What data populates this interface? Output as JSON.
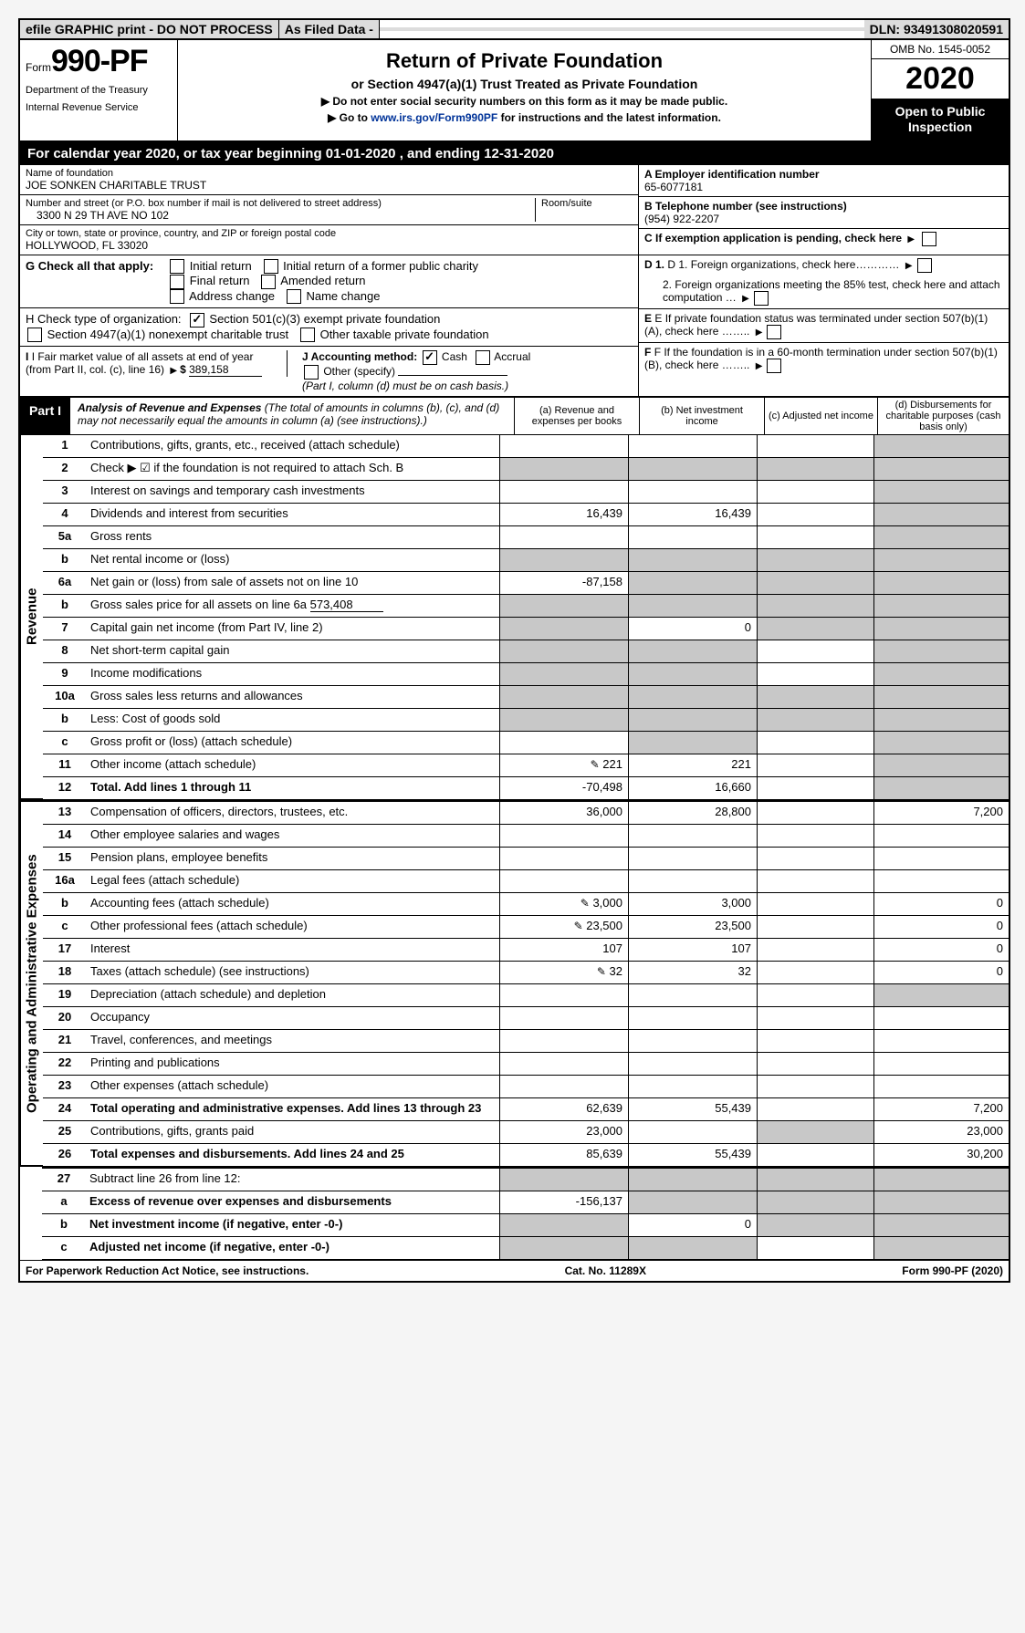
{
  "topbar": {
    "efile": "efile GRAPHIC print - DO NOT PROCESS",
    "asfiled": "As Filed Data -",
    "dln": "DLN: 93491308020591"
  },
  "header": {
    "form_word": "Form",
    "form_no": "990-PF",
    "dept1": "Department of the Treasury",
    "dept2": "Internal Revenue Service",
    "title": "Return of Private Foundation",
    "subtitle": "or Section 4947(a)(1) Trust Treated as Private Foundation",
    "note1": "▶ Do not enter social security numbers on this form as it may be made public.",
    "note2_pre": "▶ Go to ",
    "note2_link": "www.irs.gov/Form990PF",
    "note2_post": " for instructions and the latest information.",
    "omb": "OMB No. 1545-0052",
    "year": "2020",
    "open": "Open to Public Inspection"
  },
  "calendar": "For calendar year 2020, or tax year beginning 01-01-2020            , and ending 12-31-2020",
  "info": {
    "name_label": "Name of foundation",
    "name": "JOE SONKEN CHARITABLE TRUST",
    "addr_label": "Number and street (or P.O. box number if mail is not delivered to street address)",
    "addr": "3300 N 29 TH AVE NO 102",
    "room_label": "Room/suite",
    "city_label": "City or town, state or province, country, and ZIP or foreign postal code",
    "city": "HOLLYWOOD, FL  33020",
    "ein_label": "A Employer identification number",
    "ein": "65-6077181",
    "tel_label": "B Telephone number (see instructions)",
    "tel": "(954) 922-2207",
    "c_label": "C If exemption application is pending, check here"
  },
  "g": {
    "label": "G Check all that apply:",
    "o1": "Initial return",
    "o2": "Initial return of a former public charity",
    "o3": "Final return",
    "o4": "Amended return",
    "o5": "Address change",
    "o6": "Name change"
  },
  "h": {
    "label": "H Check type of organization:",
    "o1": "Section 501(c)(3) exempt private foundation",
    "o2": "Section 4947(a)(1) nonexempt charitable trust",
    "o3": "Other taxable private foundation"
  },
  "i": {
    "label": "I Fair market value of all assets at end of year (from Part II, col. (c), line 16)",
    "val": "389,158"
  },
  "j": {
    "label": "J Accounting method:",
    "o1": "Cash",
    "o2": "Accrual",
    "o3": "Other (specify)",
    "note": "(Part I, column (d) must be on cash basis.)"
  },
  "right": {
    "d1": "D 1. Foreign organizations, check here…………",
    "d2": "2. Foreign organizations meeting the 85% test, check here and attach computation …",
    "e": "E If private foundation status was terminated under section 507(b)(1)(A), check here ……..",
    "f": "F If the foundation is in a 60-month termination under section 507(b)(1)(B), check here …….."
  },
  "part1": {
    "tag": "Part I",
    "title": "Analysis of Revenue and Expenses",
    "note": " (The total of amounts in columns (b), (c), and (d) may not necessarily equal the amounts in column (a) (see instructions).)",
    "col_a": "(a) Revenue and expenses per books",
    "col_b": "(b) Net investment income",
    "col_c": "(c) Adjusted net income",
    "col_d": "(d) Disbursements for charitable purposes (cash basis only)"
  },
  "vlabels": {
    "rev": "Revenue",
    "exp": "Operating and Administrative Expenses"
  },
  "rows": {
    "r1": {
      "n": "1",
      "l": "Contributions, gifts, grants, etc., received (attach schedule)"
    },
    "r2": {
      "n": "2",
      "l": "Check ▶ ☑ if the foundation is not required to attach Sch. B"
    },
    "r3": {
      "n": "3",
      "l": "Interest on savings and temporary cash investments"
    },
    "r4": {
      "n": "4",
      "l": "Dividends and interest from securities",
      "a": "16,439",
      "b": "16,439"
    },
    "r5a": {
      "n": "5a",
      "l": "Gross rents"
    },
    "r5b": {
      "n": "b",
      "l": "Net rental income or (loss)"
    },
    "r6a": {
      "n": "6a",
      "l": "Net gain or (loss) from sale of assets not on line 10",
      "a": "-87,158"
    },
    "r6b": {
      "n": "b",
      "l": "Gross sales price for all assets on line 6a",
      "inline": "573,408"
    },
    "r7": {
      "n": "7",
      "l": "Capital gain net income (from Part IV, line 2)",
      "b": "0"
    },
    "r8": {
      "n": "8",
      "l": "Net short-term capital gain"
    },
    "r9": {
      "n": "9",
      "l": "Income modifications"
    },
    "r10a": {
      "n": "10a",
      "l": "Gross sales less returns and allowances"
    },
    "r10b": {
      "n": "b",
      "l": "Less: Cost of goods sold"
    },
    "r10c": {
      "n": "c",
      "l": "Gross profit or (loss) (attach schedule)"
    },
    "r11": {
      "n": "11",
      "l": "Other income (attach schedule)",
      "a": "221",
      "b": "221",
      "icon": true
    },
    "r12": {
      "n": "12",
      "l": "Total. Add lines 1 through 11",
      "a": "-70,498",
      "b": "16,660",
      "bold": true
    },
    "r13": {
      "n": "13",
      "l": "Compensation of officers, directors, trustees, etc.",
      "a": "36,000",
      "b": "28,800",
      "d": "7,200"
    },
    "r14": {
      "n": "14",
      "l": "Other employee salaries and wages"
    },
    "r15": {
      "n": "15",
      "l": "Pension plans, employee benefits"
    },
    "r16a": {
      "n": "16a",
      "l": "Legal fees (attach schedule)"
    },
    "r16b": {
      "n": "b",
      "l": "Accounting fees (attach schedule)",
      "a": "3,000",
      "b": "3,000",
      "d": "0",
      "icon": true
    },
    "r16c": {
      "n": "c",
      "l": "Other professional fees (attach schedule)",
      "a": "23,500",
      "b": "23,500",
      "d": "0",
      "icon": true
    },
    "r17": {
      "n": "17",
      "l": "Interest",
      "a": "107",
      "b": "107",
      "d": "0"
    },
    "r18": {
      "n": "18",
      "l": "Taxes (attach schedule) (see instructions)",
      "a": "32",
      "b": "32",
      "d": "0",
      "icon": true
    },
    "r19": {
      "n": "19",
      "l": "Depreciation (attach schedule) and depletion"
    },
    "r20": {
      "n": "20",
      "l": "Occupancy"
    },
    "r21": {
      "n": "21",
      "l": "Travel, conferences, and meetings"
    },
    "r22": {
      "n": "22",
      "l": "Printing and publications"
    },
    "r23": {
      "n": "23",
      "l": "Other expenses (attach schedule)"
    },
    "r24": {
      "n": "24",
      "l": "Total operating and administrative expenses. Add lines 13 through 23",
      "a": "62,639",
      "b": "55,439",
      "d": "7,200",
      "bold": true
    },
    "r25": {
      "n": "25",
      "l": "Contributions, gifts, grants paid",
      "a": "23,000",
      "d": "23,000"
    },
    "r26": {
      "n": "26",
      "l": "Total expenses and disbursements. Add lines 24 and 25",
      "a": "85,639",
      "b": "55,439",
      "d": "30,200",
      "bold": true
    },
    "r27": {
      "n": "27",
      "l": "Subtract line 26 from line 12:"
    },
    "r27a": {
      "n": "a",
      "l": "Excess of revenue over expenses and disbursements",
      "a": "-156,137",
      "bold": true
    },
    "r27b": {
      "n": "b",
      "l": "Net investment income (if negative, enter -0-)",
      "b": "0",
      "bold": true
    },
    "r27c": {
      "n": "c",
      "l": "Adjusted net income (if negative, enter -0-)",
      "bold": true
    }
  },
  "footer": {
    "left": "For Paperwork Reduction Act Notice, see instructions.",
    "mid": "Cat. No. 11289X",
    "right": "Form 990-PF (2020)"
  }
}
